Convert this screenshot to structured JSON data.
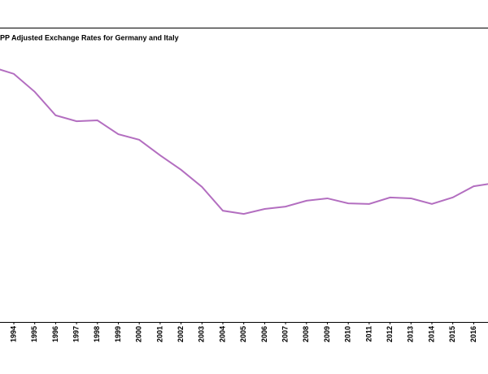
{
  "chart_data": {
    "type": "line",
    "title": "PP Adjusted Exchange Rates for Germany and Italy",
    "categories": [
      null,
      "1994",
      "1995",
      "1996",
      "1997",
      "1998",
      "1999",
      "2000",
      "2001",
      "2002",
      "2003",
      "2004",
      "2005",
      "2006",
      "2007",
      "2008",
      "2009",
      "2010",
      "2011",
      "2012",
      "2013",
      "2014",
      "2015",
      "2016",
      null
    ],
    "series": [
      {
        "color": "#b36ec0",
        "values": [
          86.5,
          84.3,
          78.2,
          70.2,
          68.2,
          68.5,
          63.8,
          61.9,
          56.6,
          51.7,
          45.9,
          37.8,
          36.7,
          38.4,
          39.2,
          41.2,
          42.0,
          40.3,
          40.1,
          42.3,
          42.0,
          40.1,
          42.3,
          46.1,
          47.2
        ]
      }
    ],
    "ylim": [
      0,
      100
    ]
  }
}
